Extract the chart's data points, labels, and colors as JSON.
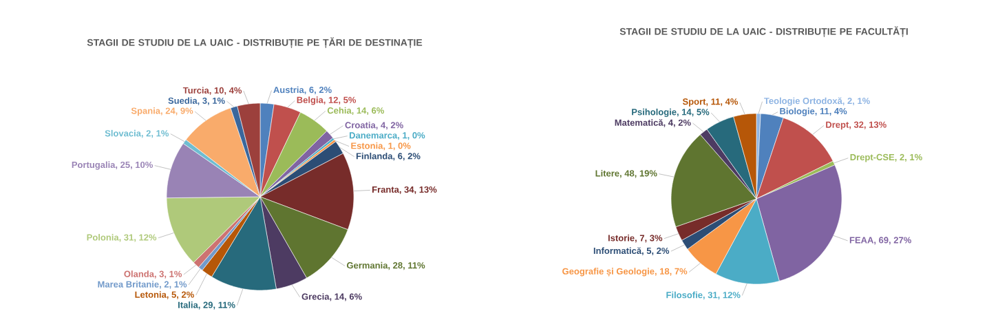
{
  "chart_data": [
    {
      "type": "pie",
      "title": "STAGII DE STUDIU DE LA UAIC - DISTRIBUȚIE PE ȚĂRI DE DESTINAȚIE",
      "categories": [
        "Austria",
        "Belgia",
        "Cehia",
        "Croatia",
        "Danemarca",
        "Estonia",
        "Finlanda",
        "Franta",
        "Germania",
        "Grecia",
        "Italia",
        "Letonia",
        "Marea Britanie",
        "Olanda",
        "Polonia",
        "Portugalia",
        "Slovacia",
        "Spania",
        "Suedia",
        "Turcia"
      ],
      "values": [
        6,
        12,
        14,
        4,
        1,
        1,
        6,
        34,
        28,
        14,
        29,
        5,
        2,
        3,
        31,
        25,
        2,
        24,
        3,
        10
      ],
      "value_labels": [
        ", 6, 2%",
        ", 12, 5%",
        ", 14, 6%",
        ", 4, 2%",
        ", 1, 0%",
        ", 1, 0%",
        ", 6, 2%",
        ", 34, 13%",
        ", 28, 11%",
        ", 14, 6%",
        ", 29, 11%",
        ", 5, 2%",
        ", 2, 1%",
        ", 3, 1%",
        ", 31, 12%",
        ", 25, 10%",
        ", 2, 1%",
        ", 24, 9%",
        ", 3, 1%",
        ", 10, 4%"
      ],
      "colors": [
        "#4f81bd",
        "#c0504d",
        "#9bbb59",
        "#8064a2",
        "#4bacc6",
        "#f79646",
        "#2c4d75",
        "#772c2a",
        "#5f7530",
        "#4d3b62",
        "#276a7c",
        "#b65708",
        "#729aca",
        "#cd7371",
        "#afc97a",
        "#9983b5",
        "#6fbdd1",
        "#f9ab6b",
        "#3a679c",
        "#9c403c"
      ]
    },
    {
      "type": "pie",
      "title": "STAGII DE STUDIU DE LA UAIC - DISTRIBUȚIE PE FACULTĂȚI",
      "categories": [
        "Teologie Ortodoxă",
        "Biologie",
        "Drept",
        "Drept-CSE",
        "FEAA",
        "Filosofie",
        "Geografie și Geologie",
        "Informatică",
        "Istorie",
        "Litere",
        "Matematică",
        "Psihologie",
        "Sport"
      ],
      "values": [
        2,
        11,
        32,
        2,
        69,
        31,
        18,
        5,
        7,
        48,
        4,
        14,
        11
      ],
      "value_labels": [
        ", 2, 1%",
        ", 11, 4%",
        ", 32, 13%",
        ", 2, 1%",
        ", 69, 27%",
        ", 31, 12%",
        ", 18, 7%",
        ", 5, 2%",
        ", 7, 3%",
        ", 48, 19%",
        ", 4, 2%",
        ", 14, 5%",
        ", 11, 4%"
      ],
      "colors": [
        "#8eb4e3",
        "#4f81bd",
        "#c0504d",
        "#9bbb59",
        "#8064a2",
        "#4bacc6",
        "#f79646",
        "#2c4d75",
        "#772c2a",
        "#5f7530",
        "#4d3b62",
        "#276a7c",
        "#b65708"
      ]
    }
  ]
}
